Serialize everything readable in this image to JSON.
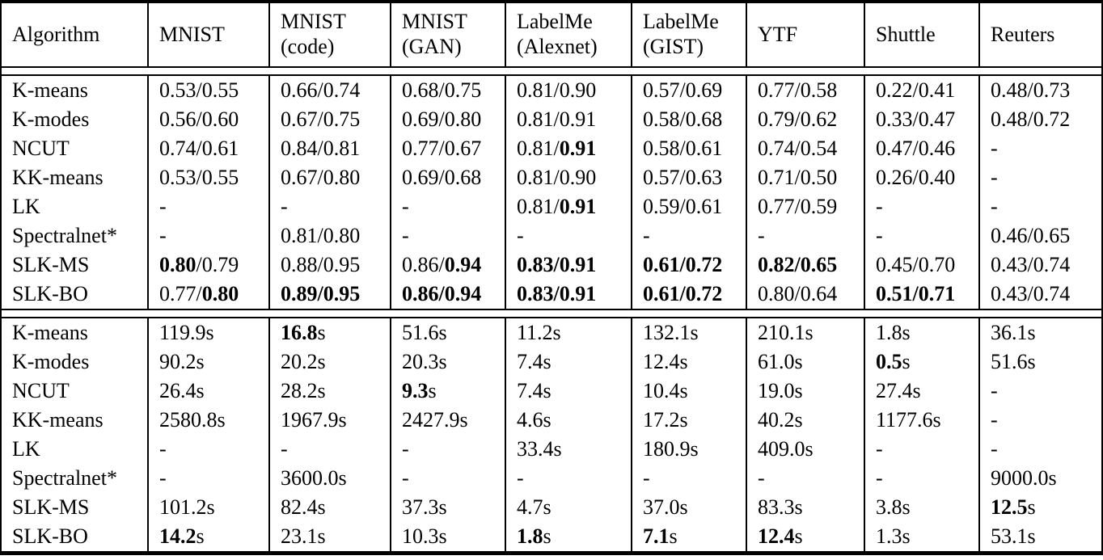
{
  "colors": {
    "text": "#000000",
    "background": "#ffffff",
    "rule": "#000000"
  },
  "table": {
    "columns": [
      {
        "line1": "Algorithm",
        "line2": ""
      },
      {
        "line1": "MNIST",
        "line2": ""
      },
      {
        "line1": "MNIST",
        "line2": "(code)"
      },
      {
        "line1": "MNIST",
        "line2": "(GAN)"
      },
      {
        "line1": "LabelMe",
        "line2": "(Alexnet)"
      },
      {
        "line1": "LabelMe",
        "line2": "(GIST)"
      },
      {
        "line1": "YTF",
        "line2": ""
      },
      {
        "line1": "Shuttle",
        "line2": ""
      },
      {
        "line1": "Reuters",
        "line2": ""
      }
    ],
    "sections": [
      {
        "name": "scores",
        "rows": [
          {
            "algorithm": "K-means",
            "cells": [
              "0.53/0.55",
              "0.66/0.74",
              "0.68/0.75",
              "0.81/0.90",
              "0.57/0.69",
              "0.77/0.58",
              "0.22/0.41",
              "0.48/0.73"
            ]
          },
          {
            "algorithm": "K-modes",
            "cells": [
              "0.56/0.60",
              "0.67/0.75",
              "0.69/0.80",
              "0.81/0.91",
              "0.58/0.68",
              "0.79/0.62",
              "0.33/0.47",
              "0.48/0.72"
            ]
          },
          {
            "algorithm": "NCUT",
            "cells": [
              "0.74/0.61",
              "0.84/0.81",
              "0.77/0.67",
              "0.81/**0.91**",
              "0.58/0.61",
              "0.74/0.54",
              "0.47/0.46",
              "-"
            ]
          },
          {
            "algorithm": "KK-means",
            "cells": [
              "0.53/0.55",
              "0.67/0.80",
              "0.69/0.68",
              "0.81/0.90",
              "0.57/0.63",
              "0.71/0.50",
              "0.26/0.40",
              "-"
            ]
          },
          {
            "algorithm": "LK",
            "cells": [
              "-",
              "-",
              "-",
              "0.81/**0.91**",
              "0.59/0.61",
              "0.77/0.59",
              "-",
              "-"
            ]
          },
          {
            "algorithm": "Spectralnet*",
            "cells": [
              "-",
              "0.81/0.80",
              "-",
              "-",
              "-",
              "-",
              "-",
              "0.46/0.65"
            ]
          },
          {
            "algorithm": "SLK-MS",
            "cells": [
              "**0.80**/0.79",
              "0.88/0.95",
              "0.86/**0.94**",
              "**0.83/0.91**",
              "**0.61/0.72**",
              "**0.82/0.65**",
              "0.45/0.70",
              "0.43/0.74"
            ]
          },
          {
            "algorithm": "SLK-BO",
            "cells": [
              "0.77/**0.80**",
              "**0.89/0.95**",
              "**0.86/0.94**",
              "**0.83/0.91**",
              "**0.61/0.72**",
              "0.80/0.64",
              "**0.51/0.71**",
              "0.43/0.74"
            ]
          }
        ]
      },
      {
        "name": "times",
        "rows": [
          {
            "algorithm": "K-means",
            "cells": [
              "119.9s",
              "**16.8**s",
              "51.6s",
              "11.2s",
              "132.1s",
              "210.1s",
              "1.8s",
              "36.1s"
            ]
          },
          {
            "algorithm": "K-modes",
            "cells": [
              "90.2s",
              "20.2s",
              "20.3s",
              "7.4s",
              "12.4s",
              "61.0s",
              "**0.5**s",
              "51.6s"
            ]
          },
          {
            "algorithm": "NCUT",
            "cells": [
              "26.4s",
              "28.2s",
              "**9.3**s",
              "7.4s",
              "10.4s",
              "19.0s",
              "27.4s",
              "-"
            ]
          },
          {
            "algorithm": "KK-means",
            "cells": [
              "2580.8s",
              "1967.9s",
              "2427.9s",
              "4.6s",
              "17.2s",
              "40.2s",
              "1177.6s",
              "-"
            ]
          },
          {
            "algorithm": "LK",
            "cells": [
              "-",
              "-",
              "-",
              "33.4s",
              "180.9s",
              "409.0s",
              "-",
              "-"
            ]
          },
          {
            "algorithm": "Spectralnet*",
            "cells": [
              "-",
              "3600.0s",
              "-",
              "-",
              "-",
              "-",
              "-",
              "9000.0s"
            ]
          },
          {
            "algorithm": "SLK-MS",
            "cells": [
              "101.2s",
              "82.4s",
              "37.3s",
              "4.7s",
              "37.0s",
              "83.3s",
              "3.8s",
              "**12.5**s"
            ]
          },
          {
            "algorithm": "SLK-BO",
            "cells": [
              "**14.2**s",
              "23.1s",
              "10.3s",
              "**1.8**s",
              "**7.1**s",
              "**12.4**s",
              "1.3s",
              "53.1s"
            ]
          }
        ]
      }
    ]
  }
}
